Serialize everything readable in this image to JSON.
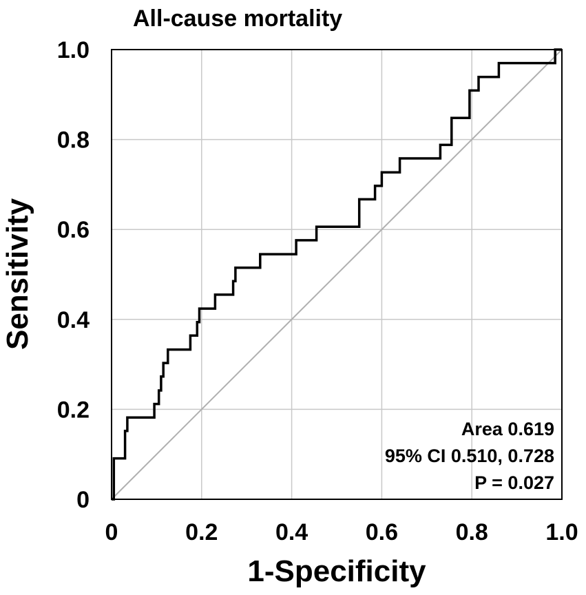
{
  "chart_data": {
    "type": "line",
    "title": "All-cause mortality",
    "xlabel": "1-Specificity",
    "ylabel": "Sensitivity",
    "xlim": [
      0,
      1
    ],
    "ylim": [
      0,
      1
    ],
    "grid": true,
    "x_ticks": [
      {
        "value": 0,
        "label": "0"
      },
      {
        "value": 0.2,
        "label": "0.2"
      },
      {
        "value": 0.4,
        "label": "0.4"
      },
      {
        "value": 0.6,
        "label": "0.6"
      },
      {
        "value": 0.8,
        "label": "0.8"
      },
      {
        "value": 1.0,
        "label": "1.0"
      }
    ],
    "y_ticks": [
      {
        "value": 0,
        "label": "0"
      },
      {
        "value": 0.2,
        "label": "0.2"
      },
      {
        "value": 0.4,
        "label": "0.4"
      },
      {
        "value": 0.6,
        "label": "0.6"
      },
      {
        "value": 0.8,
        "label": "0.8"
      },
      {
        "value": 1.0,
        "label": "1.0"
      }
    ],
    "series": [
      {
        "name": "ROC curve",
        "x": [
          0,
          0.005,
          0.005,
          0.03,
          0.03,
          0.035,
          0.035,
          0.095,
          0.095,
          0.105,
          0.105,
          0.11,
          0.11,
          0.115,
          0.115,
          0.125,
          0.125,
          0.175,
          0.175,
          0.19,
          0.19,
          0.195,
          0.195,
          0.23,
          0.23,
          0.27,
          0.27,
          0.275,
          0.275,
          0.33,
          0.33,
          0.41,
          0.41,
          0.455,
          0.455,
          0.55,
          0.55,
          0.585,
          0.585,
          0.6,
          0.6,
          0.64,
          0.64,
          0.73,
          0.73,
          0.755,
          0.755,
          0.795,
          0.795,
          0.815,
          0.815,
          0.86,
          0.86,
          0.985,
          0.985,
          1.0
        ],
        "y": [
          0,
          0,
          0.091,
          0.091,
          0.152,
          0.152,
          0.182,
          0.182,
          0.212,
          0.212,
          0.242,
          0.242,
          0.273,
          0.273,
          0.303,
          0.303,
          0.333,
          0.333,
          0.364,
          0.364,
          0.394,
          0.394,
          0.424,
          0.424,
          0.455,
          0.455,
          0.485,
          0.485,
          0.515,
          0.515,
          0.545,
          0.545,
          0.576,
          0.576,
          0.606,
          0.606,
          0.667,
          0.667,
          0.697,
          0.697,
          0.727,
          0.727,
          0.758,
          0.758,
          0.788,
          0.788,
          0.848,
          0.848,
          0.909,
          0.909,
          0.939,
          0.939,
          0.97,
          0.97,
          1.0,
          1.0
        ]
      },
      {
        "name": "Reference line",
        "x": [
          0,
          1
        ],
        "y": [
          0,
          1
        ]
      }
    ],
    "annotations": [
      "Area 0.619",
      "95% CI 0.510, 0.728",
      "P = 0.027"
    ]
  }
}
